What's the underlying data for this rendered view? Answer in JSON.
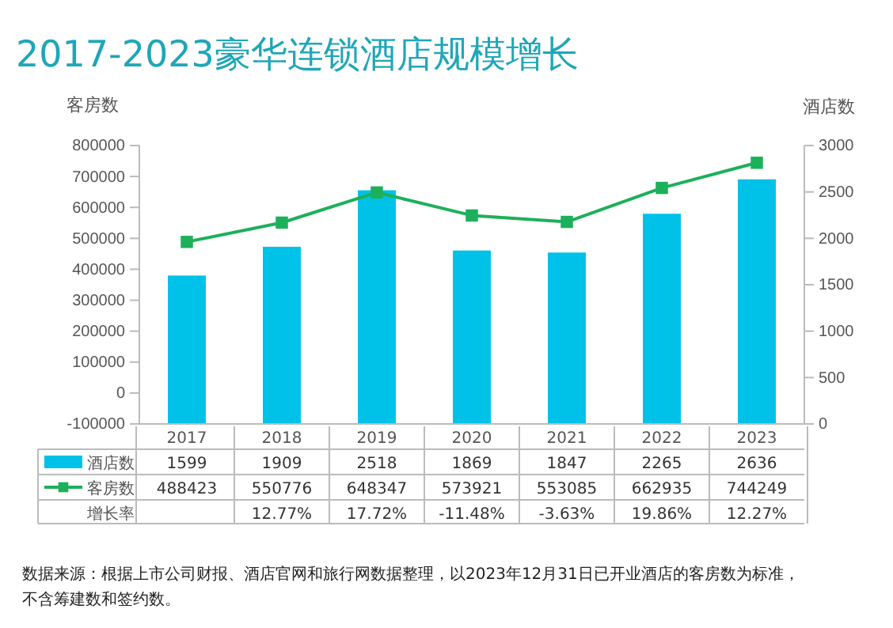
{
  "chart_data": {
    "type": "bar",
    "title": "2017-2023豪华连锁酒店规模增长",
    "ylabel": "客房数",
    "y2label": "酒店数",
    "categories": [
      "2017",
      "2018",
      "2019",
      "2020",
      "2021",
      "2022",
      "2023"
    ],
    "series": [
      {
        "name": "酒店数",
        "axis": "y2",
        "color": "#00c2e8",
        "values": [
          1599,
          1909,
          2518,
          1869,
          1847,
          2265,
          2636
        ]
      },
      {
        "name": "客房数",
        "type": "line",
        "axis": "y",
        "color": "#1db05a",
        "values": [
          488423,
          550776,
          648347,
          573921,
          553085,
          662935,
          744249
        ]
      }
    ],
    "ylim": [
      -100000,
      800000
    ],
    "yticks": [
      -100000,
      0,
      100000,
      200000,
      300000,
      400000,
      500000,
      600000,
      700000,
      800000
    ],
    "y2lim": [
      0,
      3000
    ],
    "y2ticks": [
      0,
      500,
      1000,
      1500,
      2000,
      2500,
      3000
    ],
    "marker": "square",
    "grid": false,
    "legend": "bottom",
    "data_labels": true,
    "annotations": [
      "增长率",
      "12.77%",
      "17.72%",
      "-11.48%",
      "-3.63%",
      "19.86%",
      "12.27%",
      "数据来源：根据上市公司财报、酒店官网和旅行网数据整理，以2023年12月31日已开业酒店的客房数为标准，不含筹建数和签约数。"
    ]
  }
}
